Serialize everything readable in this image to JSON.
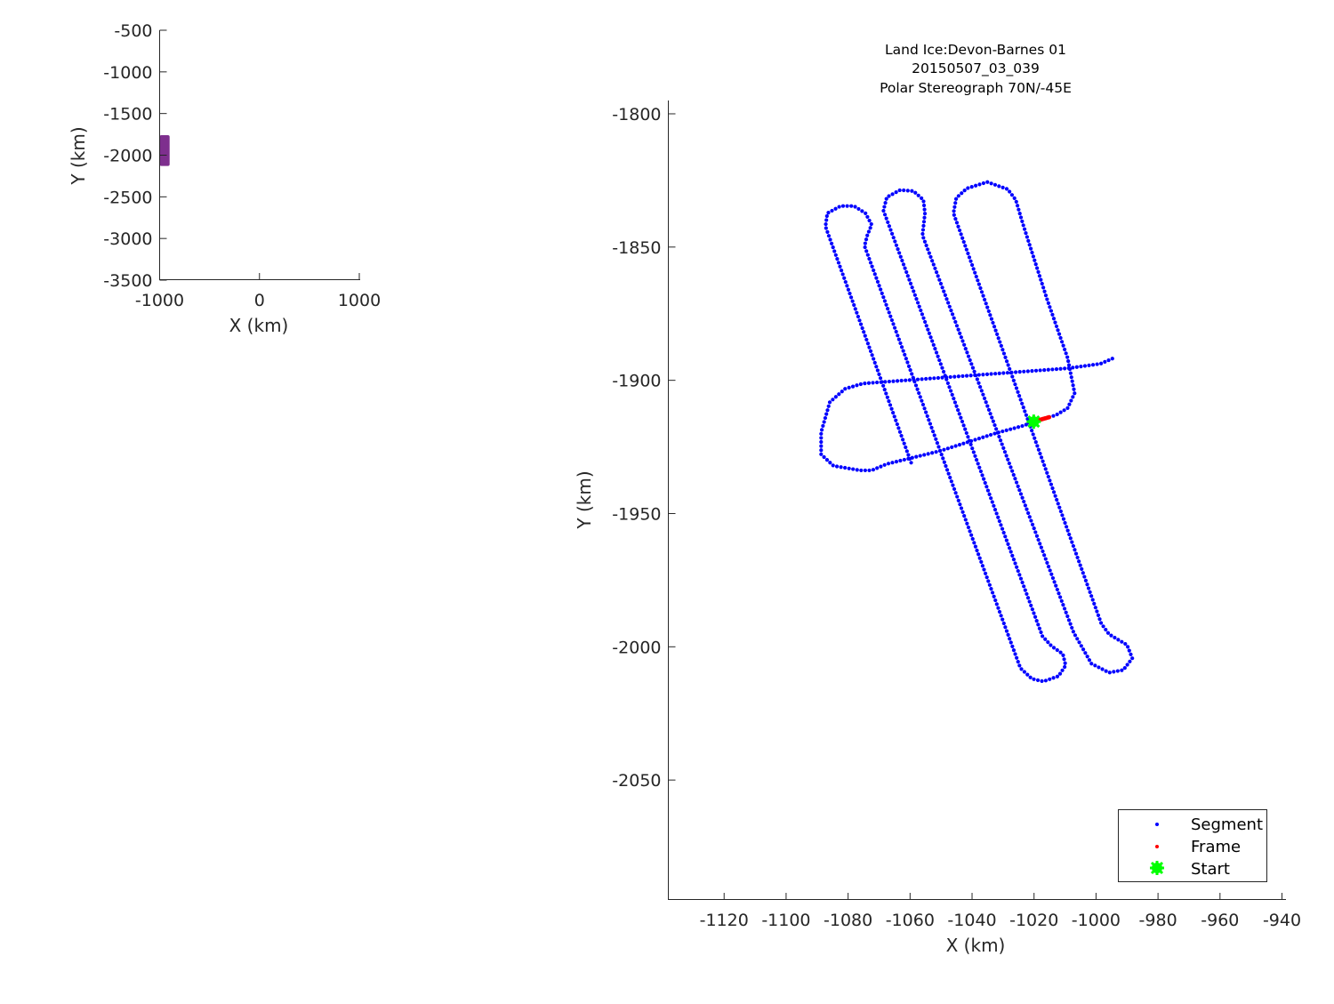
{
  "colors": {
    "segment": "#0000ff",
    "frame": "#ff0000",
    "start": "#00ff00",
    "region": "#7e2f8e",
    "axis": "#262626"
  },
  "chart_data": [
    {
      "type": "area",
      "xlabel": "X (km)",
      "ylabel": "Y (km)",
      "xlim": [
        -1000,
        1000
      ],
      "ylim": [
        -3500,
        -500
      ],
      "xticks": [
        "-1000",
        "0",
        "1000"
      ],
      "yticks": [
        "-500",
        "-1000",
        "-1500",
        "-2000",
        "-2500",
        "-3000",
        "-3500"
      ],
      "xtick_values": [
        -1000,
        0,
        1000
      ],
      "ytick_values": [
        -500,
        -1000,
        -1500,
        -2000,
        -2500,
        -3000,
        -3500
      ],
      "grid": false,
      "region": {
        "x": [
          -1000,
          -900
        ],
        "y": [
          -2130,
          -1760
        ]
      }
    },
    {
      "type": "scatter",
      "title": [
        "Land Ice:Devon-Barnes 01",
        "20150507_03_039",
        "Polar Stereograph 70N/-45E"
      ],
      "xlabel": "X (km)",
      "ylabel": "Y (km)",
      "xlim": [
        -1138,
        -939
      ],
      "ylim": [
        -2095,
        -1795
      ],
      "xticks": [
        "-1120",
        "-1100",
        "-1080",
        "-1060",
        "-1040",
        "-1020",
        "-1000",
        "-980",
        "-960",
        "-940"
      ],
      "yticks": [
        "-1800",
        "-1850",
        "-1900",
        "-1950",
        "-2000",
        "-2050"
      ],
      "xtick_values": [
        -1120,
        -1100,
        -1080,
        -1060,
        -1040,
        -1020,
        -1000,
        -980,
        -960,
        -940
      ],
      "ytick_values": [
        -1800,
        -1850,
        -1900,
        -1950,
        -2000,
        -2050
      ],
      "grid": false,
      "legend": {
        "placement": "bottom-right",
        "entries": [
          "Segment",
          "Frame",
          "Start"
        ]
      },
      "series": [
        {
          "name": "Segment",
          "marker": "dot",
          "paths": [
            [
              [
                -1020.1,
                -1915.5
              ],
              [
                -1013.0,
                -1913.1
              ],
              [
                -1009.2,
                -1910.5
              ],
              [
                -1006.9,
                -1904.8
              ],
              [
                -1009.2,
                -1891.5
              ],
              [
                -1015.8,
                -1869.6
              ],
              [
                -1023.6,
                -1841.3
              ],
              [
                -1025.9,
                -1832.3
              ],
              [
                -1028.5,
                -1828.3
              ],
              [
                -1035.1,
                -1825.6
              ],
              [
                -1041.7,
                -1828.0
              ],
              [
                -1045.1,
                -1831.6
              ],
              [
                -1046.0,
                -1837.3
              ],
              [
                -998.3,
                -1991.3
              ],
              [
                -995.8,
                -1995.3
              ],
              [
                -990.0,
                -1999.3
              ],
              [
                -988.3,
                -2004.3
              ],
              [
                -991.2,
                -2008.7
              ],
              [
                -995.8,
                -2009.7
              ],
              [
                -1001.5,
                -2006.3
              ],
              [
                -1007.2,
                -1994.7
              ],
              [
                -1056.0,
                -1845.6
              ],
              [
                -1055.2,
                -1837.3
              ],
              [
                -1055.7,
                -1832.3
              ],
              [
                -1058.9,
                -1829.0
              ],
              [
                -1063.2,
                -1828.6
              ],
              [
                -1067.5,
                -1831.3
              ],
              [
                -1068.6,
                -1836.3
              ],
              [
                -1017.3,
                -1996.0
              ],
              [
                -1014.4,
                -1999.7
              ],
              [
                -1010.7,
                -2002.7
              ],
              [
                -1009.8,
                -2007.0
              ],
              [
                -1012.1,
                -2011.0
              ],
              [
                -1017.0,
                -2013.0
              ],
              [
                -1020.7,
                -2012.0
              ],
              [
                -1024.4,
                -2008.0
              ],
              [
                -1074.7,
                -1849.6
              ],
              [
                -1073.8,
                -1845.6
              ],
              [
                -1072.4,
                -1841.6
              ],
              [
                -1074.4,
                -1837.3
              ],
              [
                -1078.1,
                -1834.6
              ],
              [
                -1082.4,
                -1834.6
              ],
              [
                -1086.7,
                -1837.3
              ],
              [
                -1087.3,
                -1842.3
              ],
              [
                -1059.5,
                -1931.4
              ]
            ],
            [
              [
                -1020.1,
                -1915.5
              ],
              [
                -1023.6,
                -1917.1
              ],
              [
                -1032.2,
                -1919.8
              ],
              [
                -1050.3,
                -1926.5
              ],
              [
                -1067.5,
                -1931.4
              ],
              [
                -1072.4,
                -1933.8
              ],
              [
                -1076.1,
                -1933.8
              ],
              [
                -1084.7,
                -1932.1
              ],
              [
                -1088.7,
                -1927.8
              ],
              [
                -1088.7,
                -1919.5
              ],
              [
                -1085.9,
                -1908.2
              ],
              [
                -1081.0,
                -1903.2
              ],
              [
                -1075.2,
                -1901.2
              ],
              [
                -1047.4,
                -1898.8
              ],
              [
                -1009.2,
                -1895.5
              ],
              [
                -998.6,
                -1893.8
              ],
              [
                -994.0,
                -1891.5
              ]
            ]
          ]
        },
        {
          "name": "Frame",
          "marker": "dot",
          "paths": [
            [
              [
                -1020.1,
                -1915.5
              ],
              [
                -1015.0,
                -1913.8
              ]
            ]
          ]
        },
        {
          "name": "Start",
          "marker": "star",
          "points": [
            [
              -1020.1,
              -1915.5
            ]
          ]
        }
      ]
    }
  ]
}
